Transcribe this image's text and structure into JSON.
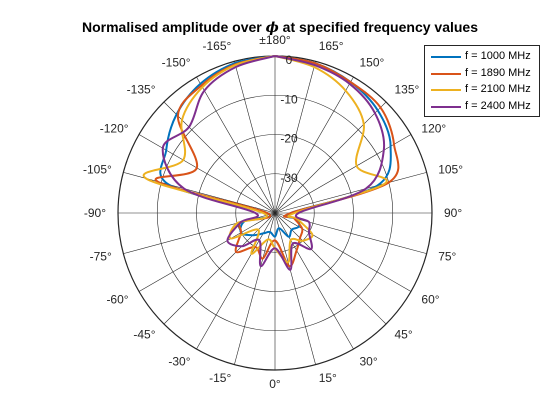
{
  "title_prefix": "Normalised amplitude over ",
  "title_symbol": "ϕ",
  "title_suffix": " at specified frequency values",
  "chart_data": {
    "type": "polar-line",
    "title": "Normalised amplitude over ϕ at specified frequency values",
    "theta_zero": "bottom",
    "theta_direction": "counterclockwise",
    "theta_ticks": [
      0,
      15,
      30,
      45,
      60,
      75,
      90,
      105,
      120,
      135,
      150,
      165,
      180,
      -165,
      -150,
      -135,
      -120,
      -105,
      -90,
      -75,
      -60,
      -45,
      -30,
      -15
    ],
    "theta_tick_labels": [
      "0°",
      "15°",
      "30°",
      "45°",
      "60°",
      "75°",
      "90°",
      "105°",
      "120°",
      "135°",
      "150°",
      "165°",
      "±180°",
      "-165°",
      "-150°",
      "-135°",
      "-120°",
      "-105°",
      "-90°",
      "-75°",
      "-60°",
      "-45°",
      "-30°",
      "-15°"
    ],
    "r_lim": [
      -40,
      0
    ],
    "r_ticks": [
      0,
      -10,
      -20,
      -30
    ],
    "r_tick_labels": [
      "0",
      "-10",
      "-20",
      "-30"
    ],
    "grid": true,
    "legend_position": "top-right",
    "theta_deg": [
      -180,
      -165,
      -150,
      -135,
      -120,
      -105,
      -90,
      -75,
      -60,
      -45,
      -30,
      -15,
      0,
      15,
      30,
      45,
      60,
      75,
      90,
      105,
      120,
      135,
      150,
      165,
      180
    ],
    "series": [
      {
        "name": "f = 1000 MHz",
        "color": "#0072bd",
        "values": [
          0,
          -0.5,
          -2,
          -4.5,
          -8,
          -12,
          -38,
          -32,
          -30,
          -32,
          -34,
          -35,
          -34,
          -36,
          -33,
          -34,
          -33,
          -34,
          -36,
          -13,
          -6,
          -3,
          -1.5,
          -0.5,
          0
        ]
      },
      {
        "name": "f = 1890 MHz",
        "color": "#d95319",
        "values": [
          0,
          -0.8,
          -2.5,
          -5,
          -17,
          -9,
          -38,
          -31,
          -30,
          -26,
          -30,
          -28,
          -33,
          -26,
          -29,
          -31,
          -32,
          -35,
          -36,
          -10,
          -5,
          -2,
          -1.5,
          -0.5,
          0
        ]
      },
      {
        "name": "f = 2100 MHz",
        "color": "#edb120",
        "values": [
          0,
          -1,
          -3,
          -6.5,
          -13,
          -6,
          -37,
          -30,
          -27,
          -34,
          -28,
          -33,
          -31,
          -27,
          -32,
          -30,
          -29,
          -34,
          -35,
          -11,
          -16,
          -8,
          -4,
          -1.5,
          0
        ]
      },
      {
        "name": "f = 2400 MHz",
        "color": "#7e2f8e",
        "values": [
          0,
          -1.5,
          -4,
          -9,
          -7,
          -16,
          -35,
          -31,
          -26,
          -28,
          -32,
          -26,
          -31,
          -25,
          -31,
          -27,
          -30,
          -31,
          -34,
          -16,
          -8,
          -4,
          -2,
          -1,
          0
        ]
      }
    ]
  }
}
